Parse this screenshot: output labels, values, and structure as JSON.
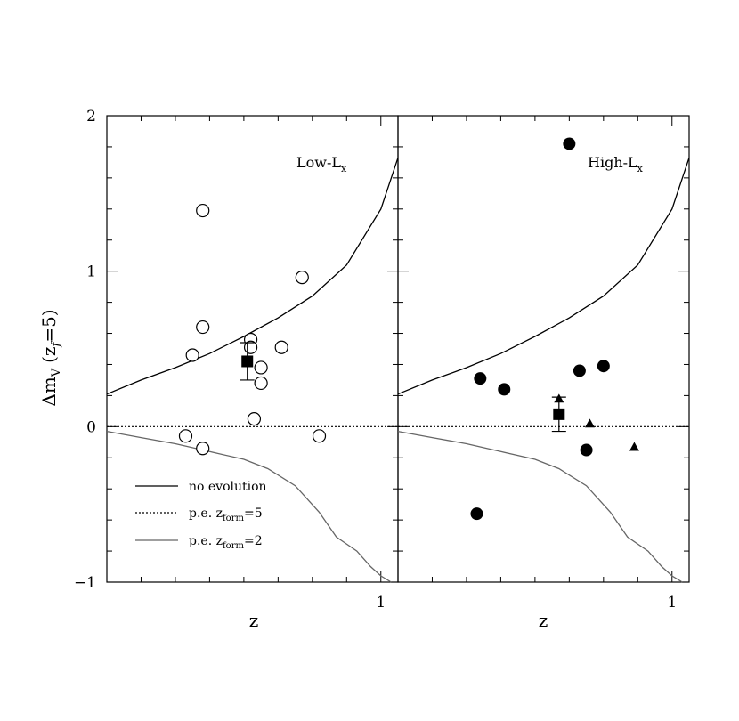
{
  "ylabel_main": "Δm",
  "ylabel_sub": "V",
  "ylabel_paren": "(z",
  "ylabel_sub2": "f",
  "ylabel_end": "=5)",
  "legend": {
    "no_evolution": "no evolution",
    "pe5_prefix": "p.e. z",
    "pe5_sub": "form",
    "pe5_suffix": "=5",
    "pe2_prefix": "p.e. z",
    "pe2_sub": "form",
    "pe2_suffix": "=2"
  },
  "chart_data": [
    {
      "type": "scatter",
      "panel": "left",
      "title_main": "Low-L",
      "title_sub": "x",
      "xlabel": "z",
      "ylabel": "Δm_V (z_f=5)",
      "xlim": [
        0.2,
        1.05
      ],
      "ylim": [
        -1,
        2
      ],
      "xticks": [
        "1"
      ],
      "yticks": [
        "2",
        "1",
        "0",
        "−1"
      ],
      "series": [
        {
          "marker": "open-circle",
          "points": [
            [
              0.48,
              1.39
            ],
            [
              0.48,
              0.64
            ],
            [
              0.45,
              0.46
            ],
            [
              0.62,
              0.56
            ],
            [
              0.62,
              0.51
            ],
            [
              0.71,
              0.51
            ],
            [
              0.77,
              0.96
            ],
            [
              0.65,
              0.38
            ],
            [
              0.65,
              0.28
            ],
            [
              0.63,
              0.05
            ],
            [
              0.43,
              -0.06
            ],
            [
              0.48,
              -0.14
            ],
            [
              0.82,
              -0.06
            ]
          ]
        },
        {
          "marker": "filled-square-errorbar",
          "points": [
            [
              0.61,
              0.42
            ]
          ],
          "errors": [
            0.12
          ]
        }
      ],
      "curves": {
        "no_evolution": [
          [
            0.2,
            0.21
          ],
          [
            0.3,
            0.3
          ],
          [
            0.4,
            0.38
          ],
          [
            0.5,
            0.47
          ],
          [
            0.6,
            0.58
          ],
          [
            0.7,
            0.7
          ],
          [
            0.8,
            0.84
          ],
          [
            0.9,
            1.04
          ],
          [
            1.0,
            1.4
          ],
          [
            1.05,
            1.73
          ]
        ],
        "pe_zform5": [
          [
            0.2,
            0.0
          ],
          [
            1.05,
            0.0
          ]
        ],
        "pe_zform2": [
          [
            0.2,
            -0.03
          ],
          [
            0.3,
            -0.07
          ],
          [
            0.4,
            -0.11
          ],
          [
            0.5,
            -0.16
          ],
          [
            0.6,
            -0.21
          ],
          [
            0.67,
            -0.27
          ],
          [
            0.75,
            -0.38
          ],
          [
            0.82,
            -0.55
          ],
          [
            0.87,
            -0.71
          ],
          [
            0.93,
            -0.8
          ],
          [
            0.97,
            -0.9
          ],
          [
            1.0,
            -0.96
          ],
          [
            1.03,
            -1.0
          ]
        ]
      }
    },
    {
      "type": "scatter",
      "panel": "right",
      "title_main": "High-L",
      "title_sub": "x",
      "xlabel": "z",
      "xlim": [
        0.2,
        1.05
      ],
      "ylim": [
        -1,
        2
      ],
      "xticks": [
        "1"
      ],
      "series": [
        {
          "marker": "filled-circle",
          "points": [
            [
              0.7,
              1.82
            ],
            [
              0.44,
              0.31
            ],
            [
              0.51,
              0.24
            ],
            [
              0.73,
              0.36
            ],
            [
              0.8,
              0.39
            ],
            [
              0.75,
              -0.15
            ],
            [
              0.43,
              -0.56
            ]
          ]
        },
        {
          "marker": "filled-triangle",
          "points": [
            [
              0.67,
              0.18
            ],
            [
              0.76,
              0.02
            ],
            [
              0.89,
              -0.13
            ]
          ]
        },
        {
          "marker": "filled-square-errorbar",
          "points": [
            [
              0.67,
              0.08
            ]
          ],
          "errors": [
            0.11
          ]
        }
      ],
      "curves": {
        "no_evolution": [
          [
            0.2,
            0.21
          ],
          [
            0.3,
            0.3
          ],
          [
            0.4,
            0.38
          ],
          [
            0.5,
            0.47
          ],
          [
            0.6,
            0.58
          ],
          [
            0.7,
            0.7
          ],
          [
            0.8,
            0.84
          ],
          [
            0.9,
            1.04
          ],
          [
            1.0,
            1.4
          ],
          [
            1.05,
            1.73
          ]
        ],
        "pe_zform5": [
          [
            0.2,
            0.0
          ],
          [
            1.05,
            0.0
          ]
        ],
        "pe_zform2": [
          [
            0.2,
            -0.03
          ],
          [
            0.3,
            -0.07
          ],
          [
            0.4,
            -0.11
          ],
          [
            0.5,
            -0.16
          ],
          [
            0.6,
            -0.21
          ],
          [
            0.67,
            -0.27
          ],
          [
            0.75,
            -0.38
          ],
          [
            0.82,
            -0.55
          ],
          [
            0.87,
            -0.71
          ],
          [
            0.93,
            -0.8
          ],
          [
            0.97,
            -0.9
          ],
          [
            1.0,
            -0.96
          ],
          [
            1.03,
            -1.0
          ]
        ]
      }
    }
  ]
}
